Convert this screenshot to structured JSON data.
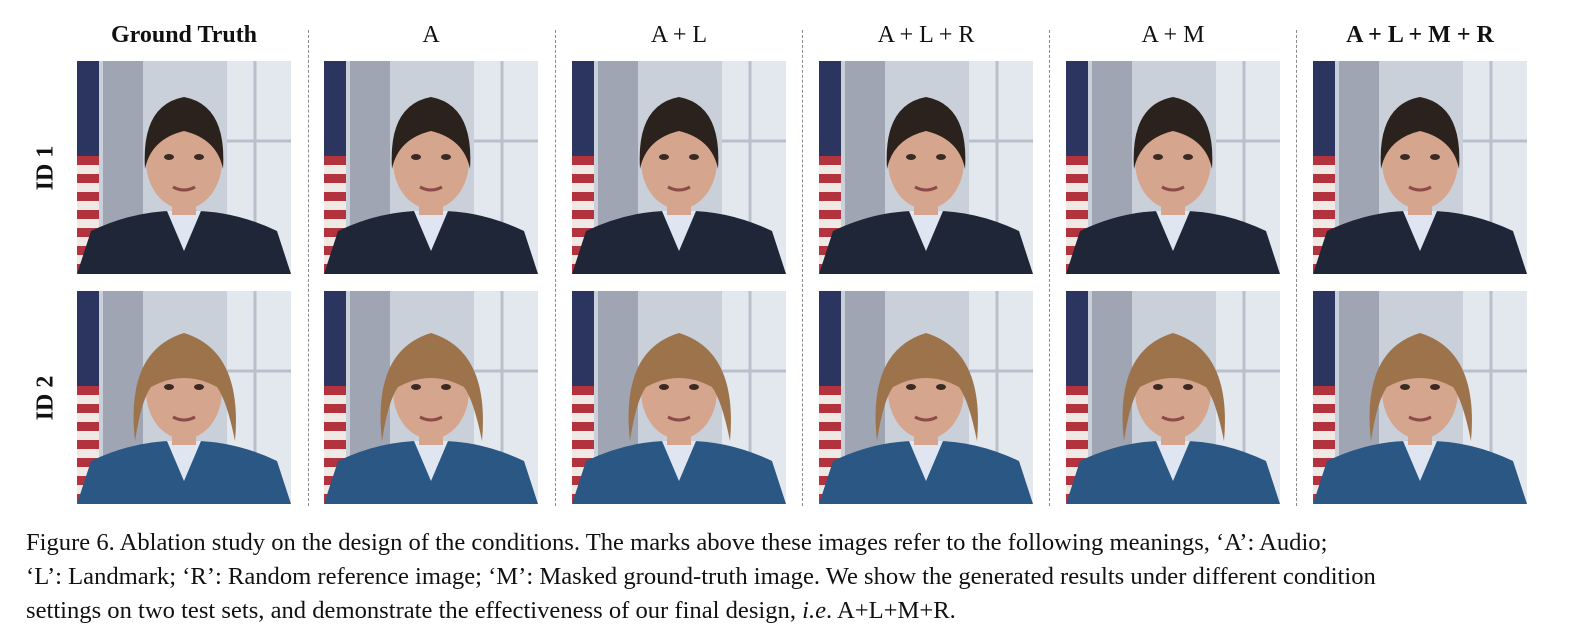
{
  "columns": [
    {
      "label": "Ground Truth",
      "bold": true
    },
    {
      "label": "A",
      "bold": false
    },
    {
      "label": "A + L",
      "bold": false
    },
    {
      "label": "A + L + R",
      "bold": false
    },
    {
      "label": "A + M",
      "bold": false
    },
    {
      "label": "A + L + M + R",
      "bold": true
    }
  ],
  "rows": [
    {
      "label": "ID 1"
    },
    {
      "label": "ID 2"
    }
  ],
  "colors": {
    "background_window": "#c9d0da",
    "curtain": "#7c8194",
    "flag_red": "#b2333e",
    "flag_blue": "#2c3560",
    "suit_id1": "#1f2637",
    "suit_id2": "#2a5783",
    "skin": "#d5a58d",
    "hair_id1": "#2b221d",
    "hair_id2": "#9d734c"
  },
  "caption": {
    "line1": "Figure 6.  Ablation study on the design of the conditions.  The marks above these images refer to the following meanings, ‘A’: Audio;",
    "line2": "‘L’: Landmark; ‘R’: Random reference image; ‘M’: Masked ground-truth image. We show the generated results under different condition",
    "line3_start": "settings on two test sets, and demonstrate the effectiveness of our final design, ",
    "line3_italic": "i.e",
    "line3_end": ". A+L+M+R."
  }
}
